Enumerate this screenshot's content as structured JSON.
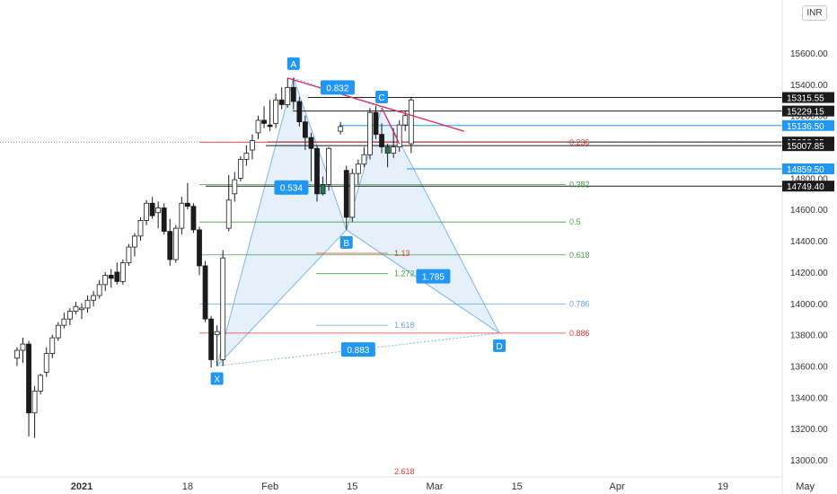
{
  "currency_label": "INR",
  "colors": {
    "up_fill": "#ffffff",
    "up_stroke": "#1b1b1b",
    "down_fill": "#1b1b1b",
    "green_fill": "#1f7a55",
    "pattern_fill": "#cfe3f7",
    "pattern_stroke": "#7fb6e6",
    "marker_bg": "#2196f3",
    "red_trend": "#e0245e",
    "fib_red": "#e53935",
    "fib_green": "#43a047",
    "fib_blue": "#64a8e8"
  },
  "chart_data": {
    "type": "candlestick",
    "y_axis": {
      "min": 12900,
      "max": 15650,
      "ticks": [
        "13000.00",
        "13200.00",
        "13400.00",
        "13600.00",
        "13800.00",
        "14000.00",
        "14200.00",
        "14400.00",
        "14600.00",
        "14800.00",
        "15000.00",
        "15200.00",
        "15400.00",
        "15600.00"
      ],
      "tick_values": [
        13000,
        13200,
        13400,
        13600,
        13800,
        14000,
        14200,
        14400,
        14600,
        14800,
        15000,
        15200,
        15400,
        15600
      ]
    },
    "x_axis": {
      "labels": [
        "2021",
        "18",
        "Feb",
        "15",
        "Mar",
        "15",
        "Apr",
        "19",
        "May"
      ],
      "label_days": [
        0,
        18,
        32,
        46,
        60,
        74,
        91,
        109,
        123
      ]
    },
    "candles": [
      {
        "d": -11,
        "o": 13650,
        "h": 13720,
        "l": 13600,
        "c": 13700
      },
      {
        "d": -10,
        "o": 13700,
        "h": 13780,
        "l": 13620,
        "c": 13740
      },
      {
        "d": -9,
        "o": 13740,
        "h": 13760,
        "l": 13150,
        "c": 13300
      },
      {
        "d": -8,
        "o": 13300,
        "h": 13470,
        "l": 13140,
        "c": 13440
      },
      {
        "d": -7,
        "o": 13440,
        "h": 13550,
        "l": 13420,
        "c": 13540
      },
      {
        "d": -6,
        "o": 13560,
        "h": 13720,
        "l": 13530,
        "c": 13680
      },
      {
        "d": -5,
        "o": 13680,
        "h": 13800,
        "l": 13650,
        "c": 13780
      },
      {
        "d": -4,
        "o": 13780,
        "h": 13880,
        "l": 13760,
        "c": 13860
      },
      {
        "d": -3,
        "o": 13860,
        "h": 13940,
        "l": 13840,
        "c": 13900
      },
      {
        "d": -2,
        "o": 13900,
        "h": 13970,
        "l": 13860,
        "c": 13950
      },
      {
        "d": -1,
        "o": 13950,
        "h": 14010,
        "l": 13930,
        "c": 13980
      },
      {
        "d": 0,
        "o": 13960,
        "h": 14000,
        "l": 13900,
        "c": 13970
      },
      {
        "d": 1,
        "o": 13970,
        "h": 14050,
        "l": 13940,
        "c": 14020
      },
      {
        "d": 2,
        "o": 14020,
        "h": 14080,
        "l": 13980,
        "c": 14050
      },
      {
        "d": 3,
        "o": 14050,
        "h": 14150,
        "l": 14030,
        "c": 14120
      },
      {
        "d": 4,
        "o": 14120,
        "h": 14200,
        "l": 14080,
        "c": 14180
      },
      {
        "d": 5,
        "o": 14180,
        "h": 14220,
        "l": 14100,
        "c": 14160
      },
      {
        "d": 6,
        "o": 14200,
        "h": 14260,
        "l": 14120,
        "c": 14140
      },
      {
        "d": 7,
        "o": 14140,
        "h": 14280,
        "l": 14120,
        "c": 14260
      },
      {
        "d": 8,
        "o": 14260,
        "h": 14380,
        "l": 14240,
        "c": 14360
      },
      {
        "d": 9,
        "o": 14360,
        "h": 14450,
        "l": 14300,
        "c": 14430
      },
      {
        "d": 10,
        "o": 14430,
        "h": 14550,
        "l": 14400,
        "c": 14530
      },
      {
        "d": 11,
        "o": 14530,
        "h": 14660,
        "l": 14500,
        "c": 14640
      },
      {
        "d": 12,
        "o": 14640,
        "h": 14680,
        "l": 14540,
        "c": 14560
      },
      {
        "d": 13,
        "o": 14580,
        "h": 14650,
        "l": 14480,
        "c": 14610
      },
      {
        "d": 14,
        "o": 14610,
        "h": 14640,
        "l": 14440,
        "c": 14460
      },
      {
        "d": 15,
        "o": 14460,
        "h": 14540,
        "l": 14240,
        "c": 14280
      },
      {
        "d": 16,
        "o": 14280,
        "h": 14500,
        "l": 14260,
        "c": 14480
      },
      {
        "d": 17,
        "o": 14480,
        "h": 14680,
        "l": 14440,
        "c": 14640
      },
      {
        "d": 18,
        "o": 14640,
        "h": 14770,
        "l": 14600,
        "c": 14620
      },
      {
        "d": 19,
        "o": 14620,
        "h": 14640,
        "l": 14450,
        "c": 14470
      },
      {
        "d": 20,
        "o": 14470,
        "h": 14490,
        "l": 14180,
        "c": 14240
      },
      {
        "d": 21,
        "o": 14240,
        "h": 14270,
        "l": 13880,
        "c": 13900
      },
      {
        "d": 22,
        "o": 13900,
        "h": 13920,
        "l": 13590,
        "c": 13640
      },
      {
        "d": 23,
        "o": 13800,
        "h": 13860,
        "l": 13600,
        "c": 13820
      },
      {
        "d": 24,
        "o": 13640,
        "h": 14340,
        "l": 13600,
        "c": 14290
      },
      {
        "d": 25,
        "o": 14480,
        "h": 14820,
        "l": 14460,
        "c": 14660
      },
      {
        "d": 26,
        "o": 14700,
        "h": 14840,
        "l": 14650,
        "c": 14790
      },
      {
        "d": 27,
        "o": 14800,
        "h": 14940,
        "l": 14780,
        "c": 14920
      },
      {
        "d": 28,
        "o": 14920,
        "h": 15010,
        "l": 14880,
        "c": 14960
      },
      {
        "d": 29,
        "o": 14980,
        "h": 15080,
        "l": 14920,
        "c": 15040
      },
      {
        "d": 30,
        "o": 15090,
        "h": 15200,
        "l": 15050,
        "c": 15170
      },
      {
        "d": 31,
        "o": 15170,
        "h": 15260,
        "l": 15120,
        "c": 15150
      },
      {
        "d": 32,
        "o": 15140,
        "h": 15300,
        "l": 15100,
        "c": 15130
      },
      {
        "d": 33,
        "o": 15150,
        "h": 15340,
        "l": 15120,
        "c": 15300
      },
      {
        "d": 34,
        "o": 15300,
        "h": 15380,
        "l": 15240,
        "c": 15270
      },
      {
        "d": 35,
        "o": 15270,
        "h": 15440,
        "l": 15250,
        "c": 15380
      },
      {
        "d": 36,
        "o": 15380,
        "h": 15440,
        "l": 15240,
        "c": 15290
      },
      {
        "d": 37,
        "o": 15290,
        "h": 15320,
        "l": 15130,
        "c": 15160
      },
      {
        "d": 38,
        "o": 15160,
        "h": 15200,
        "l": 14980,
        "c": 15060
      },
      {
        "d": 39,
        "o": 15060,
        "h": 15090,
        "l": 14780,
        "c": 14990
      },
      {
        "d": 40,
        "o": 14990,
        "h": 15010,
        "l": 14650,
        "c": 14700
      },
      {
        "d": 41,
        "o": 14700,
        "h": 14810,
        "l": 14690,
        "c": 14760
      },
      {
        "d": 42,
        "o": 14760,
        "h": 15000,
        "l": 14720,
        "c": 14990
      },
      {
        "d": 44,
        "o": 15100,
        "h": 15160,
        "l": 15080,
        "c": 15130
      },
      {
        "d": 45,
        "o": 14850,
        "h": 14880,
        "l": 14470,
        "c": 14550
      },
      {
        "d": 46,
        "o": 14550,
        "h": 14860,
        "l": 14520,
        "c": 14830
      },
      {
        "d": 47,
        "o": 14830,
        "h": 14920,
        "l": 14760,
        "c": 14890
      },
      {
        "d": 48,
        "o": 14890,
        "h": 15000,
        "l": 14870,
        "c": 14950
      },
      {
        "d": 49,
        "o": 14950,
        "h": 15250,
        "l": 14920,
        "c": 15220
      },
      {
        "d": 50,
        "o": 15220,
        "h": 15260,
        "l": 15050,
        "c": 15080
      },
      {
        "d": 51,
        "o": 15080,
        "h": 15150,
        "l": 14960,
        "c": 15000
      },
      {
        "d": 52,
        "o": 15000,
        "h": 15020,
        "l": 14870,
        "c": 14960
      },
      {
        "d": 53,
        "o": 14960,
        "h": 15120,
        "l": 14930,
        "c": 15000
      },
      {
        "d": 54,
        "o": 15000,
        "h": 15170,
        "l": 14970,
        "c": 15140
      },
      {
        "d": 55,
        "o": 15140,
        "h": 15230,
        "l": 15100,
        "c": 15200
      },
      {
        "d": 56,
        "o": 15020,
        "h": 15320,
        "l": 14960,
        "c": 15300
      }
    ],
    "price_levels": [
      {
        "label": "15315.55",
        "value": 15315.55,
        "style": "dark"
      },
      {
        "label": "15229.15",
        "value": 15229.15,
        "style": "dark"
      },
      {
        "label": "15136.50",
        "value": 15136.5,
        "style": "blue"
      },
      {
        "label": "15030.95",
        "value": 15030.95,
        "style": "dark"
      },
      {
        "label": "15007.85",
        "value": 15007.85,
        "style": "dark"
      },
      {
        "label": "14859.50",
        "value": 14859.5,
        "style": "blue"
      },
      {
        "label": "14749.40",
        "value": 14749.4,
        "style": "dark"
      }
    ],
    "fib_levels": [
      {
        "label": "0.236",
        "value": 15030,
        "color": "#e53935"
      },
      {
        "label": "0.382",
        "value": 14760,
        "color": "#43a047"
      },
      {
        "label": "0.5",
        "value": 14520,
        "color": "#43a047"
      },
      {
        "label": "0.618",
        "value": 14310,
        "color": "#43a047"
      },
      {
        "label": "0.786",
        "value": 13995,
        "color": "#64a8e8"
      },
      {
        "label": "0.886",
        "value": 13810,
        "color": "#e53935"
      }
    ],
    "ext_levels": [
      {
        "label": "1.13",
        "value": 14320,
        "color": "#e53935"
      },
      {
        "label": "1.272",
        "value": 14190,
        "color": "#43a047"
      },
      {
        "label": "1.618",
        "value": 13860,
        "color": "#64a8e8"
      },
      {
        "label": "2.618",
        "value": 12920,
        "color": "#e53935"
      }
    ],
    "pattern_points": [
      {
        "name": "X",
        "day": 23,
        "value": 13600
      },
      {
        "name": "A",
        "day": 36,
        "value": 15440
      },
      {
        "name": "B",
        "day": 45,
        "value": 14470
      },
      {
        "name": "C",
        "day": 51,
        "value": 15250
      },
      {
        "name": "D",
        "day": 71,
        "value": 13810
      }
    ],
    "ratios": [
      {
        "label": "0.832"
      },
      {
        "label": "0.534"
      },
      {
        "label": "1.785"
      },
      {
        "label": "0.883"
      }
    ],
    "trend_line": {
      "from_day": 35,
      "from_value": 15440,
      "to_day": 65,
      "to_value": 15100
    }
  }
}
